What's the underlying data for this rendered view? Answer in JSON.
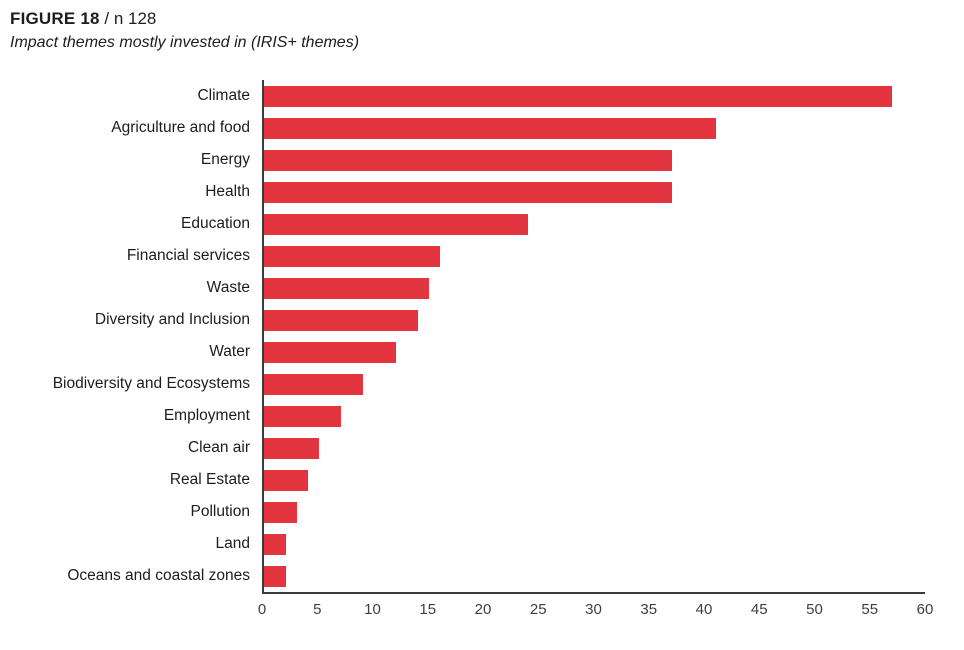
{
  "figure": {
    "title_bold": "FIGURE 18",
    "title_suffix": " / n 128",
    "subtitle": "Impact themes mostly invested in (IRIS+ themes)"
  },
  "chart_data": {
    "type": "bar",
    "orientation": "horizontal",
    "title": "FIGURE 18 / n 128 — Impact themes mostly invested in (IRIS+ themes)",
    "xlabel": "",
    "ylabel": "",
    "categories": [
      "Climate",
      "Agriculture and food",
      "Energy",
      "Health",
      "Education",
      "Financial services",
      "Waste",
      "Diversity and Inclusion",
      "Water",
      "Biodiversity and Ecosystems",
      "Employment",
      "Clean air",
      "Real Estate",
      "Pollution",
      "Land",
      "Oceans and coastal zones"
    ],
    "values": [
      57,
      41,
      37,
      37,
      24,
      16,
      15,
      14,
      12,
      9,
      7,
      5,
      4,
      3,
      2,
      2
    ],
    "xlim": [
      0,
      60
    ],
    "x_ticks": [
      0,
      5,
      10,
      15,
      20,
      25,
      30,
      35,
      40,
      45,
      50,
      55,
      60
    ],
    "bar_color": "#e2353f",
    "axis_color": "#3a3a39",
    "grid": false,
    "legend": false
  }
}
